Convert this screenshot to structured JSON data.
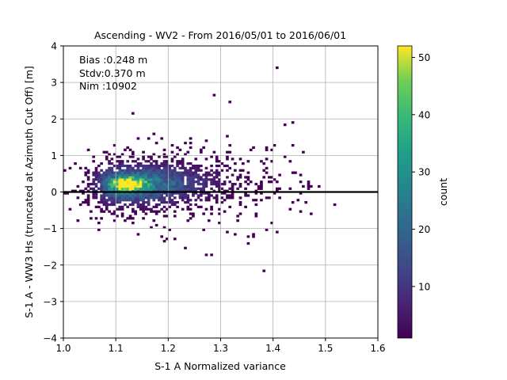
{
  "chart_data": {
    "type": "heatmap",
    "title": "Ascending - WV2 - From 2016/05/01 to 2016/06/01",
    "xlabel": "S-1 A Normalized variance",
    "ylabel": "S-1 A - WW3 Hs (truncated at Azimuth Cut Off) [m]",
    "xlim": [
      1.0,
      1.6
    ],
    "ylim": [
      -4,
      4
    ],
    "x_ticks": [
      "1.0",
      "1.1",
      "1.2",
      "1.3",
      "1.4",
      "1.5",
      "1.6"
    ],
    "y_ticks": [
      "−4",
      "−3",
      "−2",
      "−1",
      "0",
      "1",
      "2",
      "3",
      "4"
    ],
    "grid": true,
    "annotations": [
      "Bias :0.248 m",
      "Stdv:0.370 m",
      "Nim :10902"
    ],
    "reference_line_y": 0,
    "colorbar": {
      "label": "count",
      "range": [
        1,
        52
      ],
      "ticks": [
        "10",
        "20",
        "30",
        "40",
        "50"
      ],
      "colormap": "viridis"
    },
    "stats": {
      "bias_m": 0.248,
      "stdv_m": 0.37,
      "n_images": 10902
    },
    "density_peak": {
      "x": 1.11,
      "y": 0.2,
      "count": 52
    }
  }
}
